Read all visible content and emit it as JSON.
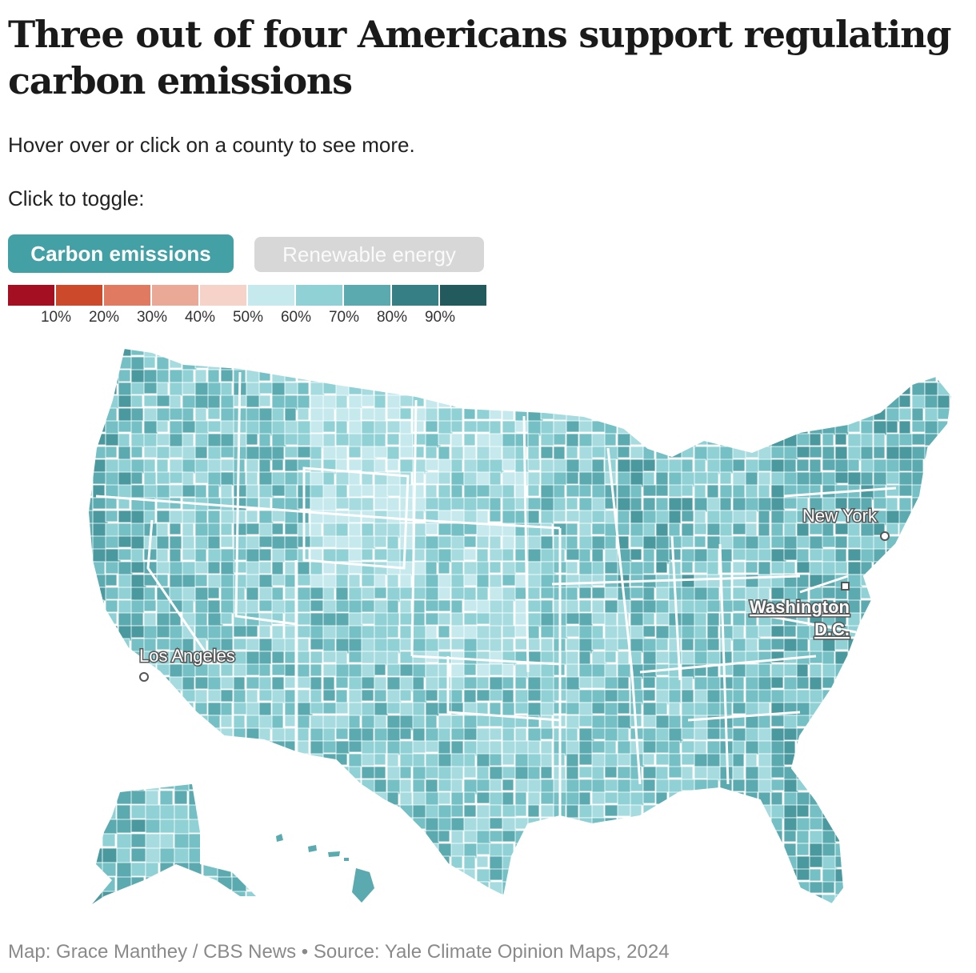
{
  "header": {
    "title": "Three out of four Americans support regulating carbon emissions",
    "subtitle": "Hover over or click on a county to see more."
  },
  "toggle": {
    "label": "Click to toggle:",
    "options": [
      {
        "label": "Carbon emissions",
        "active": true
      },
      {
        "label": "Renewable energy",
        "active": false
      }
    ]
  },
  "legend": {
    "colors": [
      "#a50f22",
      "#cc4a2b",
      "#e07b62",
      "#eaa896",
      "#f5d3c9",
      "#c5e9ec",
      "#90d1d6",
      "#5aaaaf",
      "#367f84",
      "#235a5e"
    ],
    "ticks": [
      "10%",
      "20%",
      "30%",
      "40%",
      "50%",
      "60%",
      "70%",
      "80%",
      "90%"
    ]
  },
  "map": {
    "cities": [
      {
        "name": "New York"
      },
      {
        "name": "Washington D.C.",
        "line1": "Washington",
        "line2": "D.C."
      },
      {
        "name": "Los Angeles"
      }
    ]
  },
  "footer": {
    "source": "Map: Grace Manthey / CBS News • Source: Yale Climate Opinion Maps, 2024"
  }
}
